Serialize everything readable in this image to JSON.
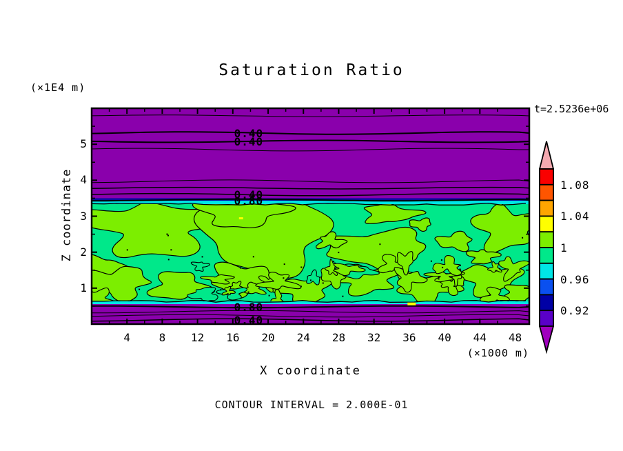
{
  "title": "Saturation Ratio",
  "timestamp": "t=2.5236e+06",
  "footer": "CONTOUR INTERVAL = 2.000E-01",
  "y_axis": {
    "label": "Z coordinate",
    "unit": "(×1E4 m)",
    "ticks": [
      "1",
      "2",
      "3",
      "4",
      "5"
    ]
  },
  "x_axis": {
    "label": "X coordinate",
    "unit": "(×1000 m)",
    "ticks": [
      "4",
      "8",
      "12",
      "16",
      "20",
      "24",
      "28",
      "32",
      "36",
      "40",
      "44",
      "48"
    ]
  },
  "colorbar": {
    "arrow_top": {
      "color": "#F5A9B0",
      "range": ">1.10"
    },
    "arrow_bottom": {
      "color": "#A000BE",
      "range": "<0.90"
    },
    "segments": [
      {
        "color": "#FA0000",
        "range": "1.08-1.10"
      },
      {
        "color": "#FF5500",
        "range": "1.06-1.08"
      },
      {
        "color": "#FFA500",
        "range": "1.04-1.06"
      },
      {
        "color": "#FFFF00",
        "range": "1.02-1.04"
      },
      {
        "color": "#7CEE00",
        "range": "1.00-1.02"
      },
      {
        "color": "#00E88A",
        "range": "0.98-1.00"
      },
      {
        "color": "#00E6E6",
        "range": "0.96-0.98"
      },
      {
        "color": "#0A50F0",
        "range": "0.94-0.96"
      },
      {
        "color": "#0000A5",
        "range": "0.92-0.94"
      },
      {
        "color": "#5A00C8",
        "range": "0.90-0.92"
      }
    ],
    "labels": [
      {
        "text": "1.08",
        "boundary_index": 1
      },
      {
        "text": "1.04",
        "boundary_index": 3
      },
      {
        "text": "1",
        "boundary_index": 5
      },
      {
        "text": "0.96",
        "boundary_index": 7
      },
      {
        "text": "0.92",
        "boundary_index": 9
      }
    ]
  },
  "chart_data": {
    "type": "heatmap",
    "subtype": "filled-contour",
    "title": "Saturation Ratio",
    "xlabel": "X coordinate (×1000 m)",
    "ylabel": "Z coordinate (×1E4 m)",
    "xlim": [
      0,
      49.6
    ],
    "ylim": [
      0,
      6
    ],
    "time_label": "t=2.5236e+06",
    "contour_interval": 0.2,
    "grid": false,
    "colors": {
      "background_low": "#8A00AC",
      "navy_strip": "#0A0AA0",
      "cyan_strip": "#00E6E6",
      "spring_green": "#00E88A",
      "chartreuse": "#7CEE00",
      "line": "#000000",
      "accent_yellow": "#FFFF00"
    },
    "bands": [
      {
        "name": "upper-subsaturated-purple",
        "value": "<0.90",
        "v_range": [
          3.47,
          6.0
        ]
      },
      {
        "name": "navy-transition-strip",
        "value": "0.92-0.94",
        "v_range": [
          3.43,
          3.5
        ]
      },
      {
        "name": "cyan-transition-strip",
        "value": "0.96-0.98",
        "v_range": [
          3.335,
          3.43
        ]
      },
      {
        "name": "saturated-cloud-layer-green",
        "value": "0.98-1.02",
        "v_range": [
          0.633,
          3.335
        ]
      },
      {
        "name": "cyan-bottom-strip",
        "value": "0.96-0.98",
        "v_range": [
          0.556,
          0.633
        ]
      },
      {
        "name": "lower-subsaturated-purple",
        "value": "<0.90",
        "v_range": [
          0.0,
          0.556
        ]
      }
    ],
    "horizontal_contours": [
      {
        "v": 5.79,
        "w": 1.0
      },
      {
        "v": 5.31,
        "w": 2.0
      },
      {
        "v": 5.08,
        "w": 2.0
      },
      {
        "v": 4.85,
        "w": 1.0
      },
      {
        "v": 3.97,
        "w": 1.0
      },
      {
        "v": 3.78,
        "w": 1.5
      },
      {
        "v": 3.6,
        "w": 1.5
      },
      {
        "v": 3.45,
        "w": 2.0
      },
      {
        "v": 0.48,
        "w": 2.0
      },
      {
        "v": 0.345,
        "w": 1.0
      },
      {
        "v": 0.23,
        "w": 1.0
      },
      {
        "v": 0.115,
        "w": 1.5
      }
    ],
    "contour_labels": [
      {
        "text": "0.40",
        "u": 17.8,
        "v": 5.31
      },
      {
        "text": "0.40",
        "u": 17.8,
        "v": 5.08
      },
      {
        "text": "0.40",
        "u": 17.8,
        "v": 3.6
      },
      {
        "text": "0.80",
        "u": 17.8,
        "v": 3.43
      },
      {
        "text": "0.80",
        "u": 17.8,
        "v": 0.48
      },
      {
        "text": "0.40",
        "u": 17.8,
        "v": 0.115
      }
    ],
    "supersaturated_blobs": [
      {
        "u": 7.2,
        "v": 2.68,
        "ru": 7.4,
        "rv": 0.73,
        "seed": 11
      },
      {
        "u": 1.3,
        "v": 1.53,
        "ru": 2.3,
        "rv": 0.35,
        "seed": 12
      },
      {
        "u": 19.7,
        "v": 2.49,
        "ru": 7.0,
        "rv": 1.05,
        "seed": 13
      },
      {
        "u": 17.0,
        "v": 3.1,
        "ru": 4.7,
        "rv": 0.38,
        "seed": 14
      },
      {
        "u": 33.8,
        "v": 3.07,
        "ru": 3.0,
        "rv": 0.25,
        "seed": 15
      },
      {
        "u": 37.3,
        "v": 2.78,
        "ru": 1.2,
        "rv": 0.15,
        "seed": 16
      },
      {
        "u": 32.6,
        "v": 2.07,
        "ru": 5.5,
        "rv": 0.54,
        "seed": 17
      },
      {
        "u": 47.0,
        "v": 2.68,
        "ru": 3.5,
        "rv": 0.58,
        "seed": 18
      },
      {
        "u": 27.1,
        "v": 2.3,
        "ru": 1.4,
        "rv": 0.19,
        "seed": 19
      },
      {
        "u": 41.2,
        "v": 2.3,
        "ru": 1.95,
        "rv": 0.23,
        "seed": 20
      },
      {
        "u": 44.3,
        "v": 1.88,
        "ru": 1.6,
        "rv": 0.19,
        "seed": 21
      },
      {
        "u": 2.9,
        "v": 1.15,
        "ru": 3.5,
        "rv": 0.42,
        "seed": 22
      },
      {
        "u": 9.9,
        "v": 1.05,
        "ru": 3.1,
        "rv": 0.38,
        "seed": 23
      },
      {
        "u": 17.0,
        "v": 1.25,
        "ru": 3.5,
        "rv": 0.42,
        "seed": 24
      },
      {
        "u": 24.0,
        "v": 0.96,
        "ru": 3.1,
        "rv": 0.35,
        "seed": 25
      },
      {
        "u": 31.0,
        "v": 1.25,
        "ru": 3.5,
        "rv": 0.38,
        "seed": 26
      },
      {
        "u": 38.0,
        "v": 1.05,
        "ru": 3.5,
        "rv": 0.38,
        "seed": 27
      },
      {
        "u": 45.1,
        "v": 1.25,
        "ru": 3.1,
        "rv": 0.38,
        "seed": 28
      },
      {
        "u": 48.6,
        "v": 0.86,
        "ru": 1.95,
        "rv": 0.23,
        "seed": 29
      }
    ],
    "texture": {
      "seed": 7,
      "small_blob_count": 26,
      "region": [
        0,
        49.6,
        0.65,
        1.75
      ],
      "speck_count": 30
    },
    "accents": [
      {
        "u": 16.7,
        "v": 2.97,
        "w": 6,
        "h": 3
      },
      {
        "u": 35.8,
        "v": 0.6,
        "w": 12,
        "h": 4
      }
    ]
  }
}
